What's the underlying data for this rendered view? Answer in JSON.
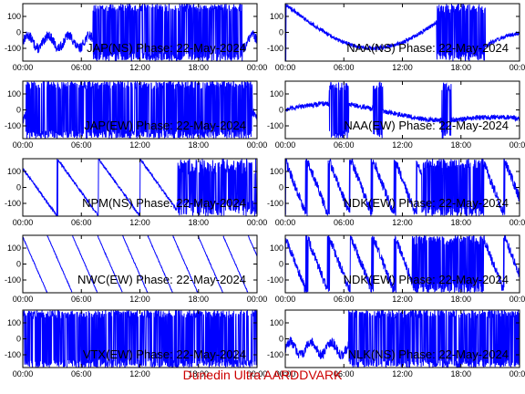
{
  "colors": {
    "trace": "#0000ff",
    "axis": "#000000",
    "footer": "#cc0000"
  },
  "footer": "Dunedin Ultra AARDDVARK",
  "chart_data": [
    {
      "type": "line",
      "title": "JAP(NS) Phase: 22-May-2024",
      "x_ticks": [
        "00:00",
        "06:00",
        "12:00",
        "18:00",
        "00:00"
      ],
      "y_ticks": [
        100,
        0,
        -100
      ],
      "ylim": [
        -180,
        180
      ],
      "xlim_hours": [
        0,
        24
      ],
      "pattern": "saturated",
      "dense_from": 7.2,
      "dense_to": 22.5
    },
    {
      "type": "line",
      "title": "NAA(NS) Phase: 22-May-2024",
      "x_ticks": [
        "00:00",
        "06:00",
        "12:00",
        "18:00",
        "00:00"
      ],
      "y_ticks": [
        100,
        0,
        -100
      ],
      "ylim": [
        -180,
        180
      ],
      "xlim_hours": [
        0,
        24
      ],
      "pattern": "bowl",
      "dense_from": 15.5,
      "dense_to": 20.5
    },
    {
      "type": "line",
      "title": "JAP(EW) Phase: 22-May-2024",
      "x_ticks": [
        "00:00",
        "06:00",
        "12:00",
        "18:00",
        "00:00"
      ],
      "y_ticks": [
        100,
        0,
        -100
      ],
      "ylim": [
        -180,
        180
      ],
      "xlim_hours": [
        0,
        24
      ],
      "pattern": "saturated",
      "dense_from": 0.3,
      "dense_to": 23.5
    },
    {
      "type": "line",
      "title": "NAA(EW) Phase: 22-May-2024",
      "x_ticks": [
        "00:00",
        "06:00",
        "12:00",
        "18:00",
        "00:00"
      ],
      "y_ticks": [
        100,
        0,
        -100
      ],
      "ylim": [
        -180,
        180
      ],
      "xlim_hours": [
        0,
        24
      ],
      "pattern": "wave",
      "dense_from": 4.5,
      "dense_to": 6.5
    },
    {
      "type": "line",
      "title": "NPM(NS) Phase: 22-May-2024",
      "x_ticks": [
        "00:00",
        "06:00",
        "12:00",
        "18:00",
        "00:00"
      ],
      "y_ticks": [
        100,
        0,
        -100
      ],
      "ylim": [
        -180,
        180
      ],
      "xlim_hours": [
        0,
        24
      ],
      "pattern": "drift",
      "dense_from": 15.8,
      "dense_to": 24
    },
    {
      "type": "line",
      "title": "NDK(EW) Phase: 22-May-2024",
      "x_ticks": [
        "00:00",
        "06:00",
        "12:00",
        "18:00",
        "00:00"
      ],
      "y_ticks": [
        100,
        0,
        -100
      ],
      "ylim": [
        -180,
        180
      ],
      "xlim_hours": [
        0,
        24
      ],
      "pattern": "sawnoise",
      "dense_from": 14,
      "dense_to": 20
    },
    {
      "type": "line",
      "title": "NWC(EW) Phase: 22-May-2024",
      "x_ticks": [
        "00:00",
        "06:00",
        "12:00",
        "18:00",
        "00:00"
      ],
      "y_ticks": [
        100,
        0,
        -100
      ],
      "ylim": [
        -180,
        180
      ],
      "xlim_hours": [
        0,
        24
      ],
      "pattern": "sawtooth",
      "dense_from": 0,
      "dense_to": 0
    },
    {
      "type": "line",
      "title": "NDK(EW) Phase: 22-May-2024",
      "x_ticks": [
        "00:00",
        "06:00",
        "12:00",
        "18:00",
        "00:00"
      ],
      "y_ticks": [
        100,
        0,
        -100
      ],
      "ylim": [
        -180,
        180
      ],
      "xlim_hours": [
        0,
        24
      ],
      "pattern": "sawnoise",
      "dense_from": 13,
      "dense_to": 20
    },
    {
      "type": "line",
      "title": "VTX(EW) Phase: 22-May-2024",
      "x_ticks": [
        "00:00",
        "06:00",
        "12:00",
        "18:00",
        "00:00"
      ],
      "y_ticks": [
        100,
        0,
        -100
      ],
      "ylim": [
        -180,
        180
      ],
      "xlim_hours": [
        0,
        24
      ],
      "pattern": "saturated",
      "dense_from": 0,
      "dense_to": 24
    },
    {
      "type": "line",
      "title": "NLK(NS) Phase: 22-May-2024",
      "x_ticks": [
        "00:00",
        "06:00",
        "12:00",
        "18:00",
        "00:00"
      ],
      "y_ticks": [
        100,
        0,
        -100
      ],
      "ylim": [
        -180,
        180
      ],
      "xlim_hours": [
        0,
        24
      ],
      "pattern": "saturated",
      "dense_from": 6.5,
      "dense_to": 24
    }
  ]
}
